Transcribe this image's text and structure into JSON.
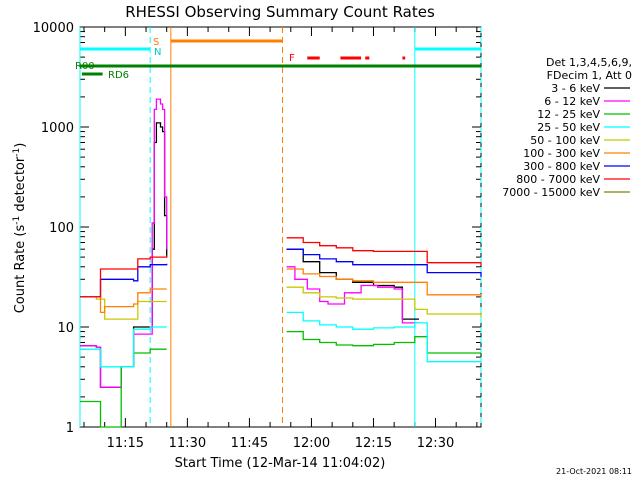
{
  "chart_data": {
    "type": "line",
    "title": "RHESSI Observing Summary Count Rates",
    "xlabel": "Start Time (12-Mar-14 11:04:02)",
    "ylabel": "Count Rate (s",
    "ylabel_sup1": "-1",
    "ylabel_mid": " detector",
    "ylabel_sup2": "-1",
    "ylabel_end": ")",
    "y_scale": "log",
    "ylim": [
      1,
      10000
    ],
    "xlim": [
      "11:04:02",
      "12:41:00"
    ],
    "yticks": [
      {
        "value": 1,
        "label": "1"
      },
      {
        "value": 10,
        "label": "10"
      },
      {
        "value": 100,
        "label": "100"
      },
      {
        "value": 1000,
        "label": "1000"
      },
      {
        "value": 10000,
        "label": "10000"
      }
    ],
    "xticks": [
      "11:15",
      "11:30",
      "11:45",
      "12:00",
      "12:15",
      "12:30"
    ],
    "legend_header": [
      "Det 1,3,4,5,6,9,",
      "FDecim 1, Att 0"
    ],
    "legend_placement": "right",
    "footer_date": "21-Oct-2021 08:11",
    "annotations": {
      "s_label": "S",
      "n_label": "N",
      "f_label": "F",
      "r00_label": "R00",
      "rd6_label": "RD6"
    },
    "colors": {
      "s_marker": "#ff8000",
      "n_marker": "#00ffff",
      "f_marker": "#ff0000",
      "r00": "#008000",
      "rd6": "#008000"
    },
    "state_bars": {
      "night": [
        [
          "11:04:02",
          "11:21:00"
        ],
        [
          "12:25:00",
          "12:41:00"
        ]
      ],
      "saa": [
        [
          "11:26:00",
          "11:53:00"
        ]
      ],
      "flare": [
        [
          "11:59:00",
          "12:02:00"
        ],
        [
          "12:07:00",
          "12:12:00"
        ],
        [
          "12:13:00",
          "12:14:00"
        ],
        [
          "12:22:00",
          "12:22:40"
        ]
      ],
      "r00": [
        [
          "11:04:02",
          "12:41:00"
        ]
      ],
      "rd6": [
        [
          "11:04:30",
          "11:09:30"
        ]
      ]
    },
    "vertical_lines": [
      {
        "time": "11:04:02",
        "style": "solid",
        "color": "#00ffff"
      },
      {
        "time": "11:21:00",
        "style": "dashed",
        "color": "#00ffff"
      },
      {
        "time": "11:26:00",
        "style": "solid",
        "color": "#ff8000"
      },
      {
        "time": "11:53:00",
        "style": "dashed",
        "color": "#ff8000"
      },
      {
        "time": "12:25:00",
        "style": "solid",
        "color": "#00ffff"
      },
      {
        "time": "12:41:00",
        "style": "dashed",
        "color": "#00ffff"
      }
    ],
    "series": [
      {
        "name": "3 - 6 keV",
        "color": "#000000",
        "points": [
          [
            "11:04:02",
            6.5
          ],
          [
            "11:08:00",
            6.3
          ],
          [
            "11:09:00",
            2.5
          ],
          [
            "11:10:00",
            2.5
          ],
          [
            "11:12:00",
            2.5
          ],
          [
            "11:14:00",
            4.0
          ],
          [
            "11:17:00",
            10
          ],
          [
            "11:20:00",
            10
          ],
          [
            "11:21:30",
            60
          ],
          [
            "11:22:00",
            700
          ],
          [
            "11:22:30",
            1100
          ],
          [
            "11:23:30",
            1000
          ],
          [
            "11:24:00",
            900
          ],
          [
            "11:24:30",
            130
          ],
          [
            "11:25:00",
            50
          ],
          [
            "11:54:00",
            60
          ],
          [
            "11:58:00",
            45
          ],
          [
            "12:02:00",
            35
          ],
          [
            "12:06:00",
            30
          ],
          [
            "12:10:00",
            28
          ],
          [
            "12:15:00",
            26
          ],
          [
            "12:20:00",
            25
          ],
          [
            "12:22:00",
            12
          ],
          [
            "12:25:00",
            12
          ],
          [
            "12:26:00",
            12
          ]
        ]
      },
      {
        "name": "6 - 12 keV",
        "color": "#ff00ff",
        "points": [
          [
            "11:04:02",
            6.5
          ],
          [
            "11:08:00",
            6.3
          ],
          [
            "11:09:00",
            2.5
          ],
          [
            "11:14:00",
            4.0
          ],
          [
            "11:17:00",
            8.5
          ],
          [
            "11:20:00",
            8.5
          ],
          [
            "11:21:30",
            110
          ],
          [
            "11:22:00",
            1500
          ],
          [
            "11:22:30",
            1900
          ],
          [
            "11:23:30",
            1700
          ],
          [
            "11:24:00",
            1500
          ],
          [
            "11:24:30",
            200
          ],
          [
            "11:25:00",
            60
          ],
          [
            "11:54:00",
            40
          ],
          [
            "11:56:00",
            30
          ],
          [
            "11:59:00",
            24
          ],
          [
            "12:02:00",
            18
          ],
          [
            "12:04:00",
            17
          ],
          [
            "12:08:00",
            22
          ],
          [
            "12:12:00",
            26
          ],
          [
            "12:16:00",
            25
          ],
          [
            "12:20:00",
            24
          ],
          [
            "12:22:00",
            11
          ],
          [
            "12:26:00",
            11
          ]
        ]
      },
      {
        "name": "12 - 25 keV",
        "color": "#00c000",
        "points": [
          [
            "11:04:02",
            1.8
          ],
          [
            "11:08:00",
            1.8
          ],
          [
            "11:09:00",
            1.0
          ],
          [
            "11:12:00",
            1.0
          ],
          [
            "11:14:00",
            4.0
          ],
          [
            "11:17:00",
            5.5
          ],
          [
            "11:20:00",
            5.5
          ],
          [
            "11:21:00",
            6.0
          ],
          [
            "11:25:00",
            6.0
          ],
          [
            "11:54:00",
            9.0
          ],
          [
            "11:58:00",
            7.5
          ],
          [
            "12:02:00",
            7.0
          ],
          [
            "12:06:00",
            6.6
          ],
          [
            "12:10:00",
            6.5
          ],
          [
            "12:15:00",
            6.7
          ],
          [
            "12:20:00",
            7.0
          ],
          [
            "12:25:00",
            8.0
          ],
          [
            "12:26:00",
            8.0
          ],
          [
            "12:28:00",
            5.5
          ],
          [
            "12:41:00",
            5.5
          ]
        ]
      },
      {
        "name": "25 - 50 keV",
        "color": "#00ffff",
        "points": [
          [
            "11:04:02",
            6.0
          ],
          [
            "11:08:00",
            6.0
          ],
          [
            "11:09:00",
            4.0
          ],
          [
            "11:14:00",
            4.0
          ],
          [
            "11:17:00",
            9.5
          ],
          [
            "11:20:00",
            9.5
          ],
          [
            "11:21:00",
            10
          ],
          [
            "11:25:00",
            10
          ],
          [
            "11:54:00",
            14
          ],
          [
            "11:58:00",
            11.5
          ],
          [
            "12:02:00",
            10.5
          ],
          [
            "12:06:00",
            10
          ],
          [
            "12:10:00",
            9.5
          ],
          [
            "12:15:00",
            9.8
          ],
          [
            "12:20:00",
            10
          ],
          [
            "12:25:00",
            11
          ],
          [
            "12:28:00",
            4.5
          ],
          [
            "12:41:00",
            4.5
          ]
        ]
      },
      {
        "name": "50 - 100 keV",
        "color": "#c8c800",
        "points": [
          [
            "11:04:02",
            20
          ],
          [
            "11:08:00",
            19
          ],
          [
            "11:09:00",
            19
          ],
          [
            "11:10:00",
            12
          ],
          [
            "11:17:00",
            12
          ],
          [
            "11:18:00",
            18
          ],
          [
            "11:21:00",
            18
          ],
          [
            "11:25:00",
            18
          ],
          [
            "11:54:00",
            25
          ],
          [
            "11:58:00",
            22
          ],
          [
            "12:02:00",
            20
          ],
          [
            "12:06:00",
            19.5
          ],
          [
            "12:10:00",
            19
          ],
          [
            "12:15:00",
            19
          ],
          [
            "12:20:00",
            19
          ],
          [
            "12:25:00",
            15
          ],
          [
            "12:28:00",
            13.5
          ],
          [
            "12:41:00",
            12.5
          ]
        ]
      },
      {
        "name": "100 - 300 keV",
        "color": "#ff8000",
        "points": [
          [
            "11:04:02",
            20
          ],
          [
            "11:08:00",
            20
          ],
          [
            "11:09:00",
            14
          ],
          [
            "11:10:00",
            16
          ],
          [
            "11:17:00",
            17
          ],
          [
            "11:18:00",
            22
          ],
          [
            "11:21:00",
            24
          ],
          [
            "11:25:00",
            24
          ],
          [
            "11:54:00",
            38
          ],
          [
            "11:58:00",
            34
          ],
          [
            "12:02:00",
            32
          ],
          [
            "12:06:00",
            30
          ],
          [
            "12:10:00",
            29
          ],
          [
            "12:15:00",
            28
          ],
          [
            "12:20:00",
            28
          ],
          [
            "12:25:00",
            28
          ],
          [
            "12:28:00",
            21
          ],
          [
            "12:41:00",
            20
          ]
        ]
      },
      {
        "name": "300 - 800 keV",
        "color": "#0000ff",
        "points": [
          [
            "11:04:02",
            20
          ],
          [
            "11:08:00",
            20
          ],
          [
            "11:09:00",
            30
          ],
          [
            "11:17:00",
            29
          ],
          [
            "11:18:00",
            40
          ],
          [
            "11:21:00",
            42
          ],
          [
            "11:25:00",
            43
          ],
          [
            "11:54:00",
            60
          ],
          [
            "11:58:00",
            53
          ],
          [
            "12:02:00",
            48
          ],
          [
            "12:06:00",
            45
          ],
          [
            "12:10:00",
            42
          ],
          [
            "12:15:00",
            42
          ],
          [
            "12:20:00",
            42
          ],
          [
            "12:25:00",
            42
          ],
          [
            "12:28:00",
            35
          ],
          [
            "12:41:00",
            32
          ]
        ]
      },
      {
        "name": "800 - 7000 keV",
        "color": "#ff0000",
        "points": [
          [
            "11:04:02",
            20
          ],
          [
            "11:08:00",
            20
          ],
          [
            "11:09:00",
            38
          ],
          [
            "11:17:00",
            38
          ],
          [
            "11:18:00",
            48
          ],
          [
            "11:21:00",
            50
          ],
          [
            "11:25:00",
            52
          ],
          [
            "11:54:00",
            78
          ],
          [
            "11:58:00",
            70
          ],
          [
            "12:02:00",
            65
          ],
          [
            "12:06:00",
            62
          ],
          [
            "12:10:00",
            58
          ],
          [
            "12:15:00",
            57
          ],
          [
            "12:20:00",
            57
          ],
          [
            "12:25:00",
            57
          ],
          [
            "12:28:00",
            44
          ],
          [
            "12:41:00",
            41
          ]
        ]
      },
      {
        "name": "7000 - 15000 keV",
        "color": "#808000",
        "points": []
      }
    ]
  }
}
